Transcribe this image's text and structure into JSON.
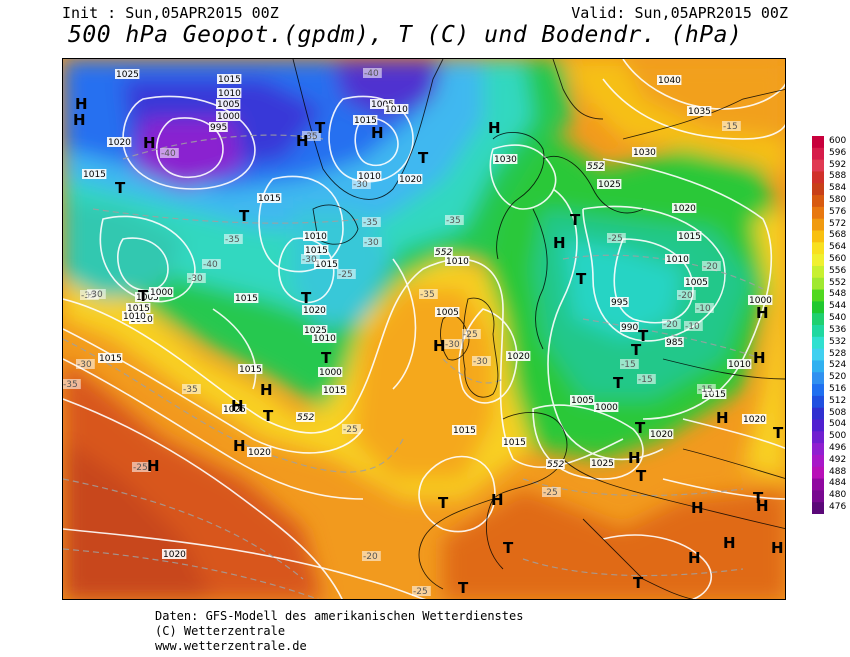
{
  "header": {
    "init": "Init : Sun,05APR2015 00Z",
    "valid": "Valid: Sun,05APR2015 00Z",
    "title": "500 hPa Geopot.(gpdm), T (C) und Bodendr. (hPa)"
  },
  "legend": {
    "levels": [
      "600",
      "596",
      "592",
      "588",
      "584",
      "580",
      "576",
      "572",
      "568",
      "564",
      "560",
      "556",
      "552",
      "548",
      "544",
      "540",
      "536",
      "532",
      "528",
      "524",
      "520",
      "516",
      "512",
      "508",
      "504",
      "500",
      "496",
      "492",
      "488",
      "484",
      "480",
      "476"
    ],
    "colors": [
      "#c8003c",
      "#d61c4a",
      "#e03a52",
      "#d0302a",
      "#c84018",
      "#d85a10",
      "#e87810",
      "#f09a10",
      "#f8c010",
      "#f8e020",
      "#f0f030",
      "#c8f030",
      "#a0e830",
      "#50d820",
      "#20c830",
      "#20d070",
      "#20d8a0",
      "#30e0d0",
      "#40d0f0",
      "#30b0f0",
      "#3090f0",
      "#2070f0",
      "#2050e0",
      "#3030d0",
      "#5020d0",
      "#7020d0",
      "#9020d0",
      "#a818c8",
      "#b810b8",
      "#9008a0",
      "#780890",
      "#5a0878"
    ]
  },
  "map_labels": {
    "high_pressure": [
      "H",
      "H",
      "H",
      "H",
      "H",
      "H",
      "H",
      "H",
      "H",
      "H",
      "H",
      "H",
      "H",
      "H",
      "H",
      "H",
      "H",
      "H",
      "H",
      "H",
      "H",
      "H"
    ],
    "low_pressure": [
      "T",
      "T",
      "T",
      "T",
      "T",
      "T",
      "T",
      "T",
      "T",
      "T",
      "T",
      "T",
      "T",
      "T",
      "T",
      "T",
      "T",
      "T",
      "T",
      "T",
      "T"
    ],
    "isobars": [
      "1025",
      "1015",
      "1010",
      "1005",
      "1000",
      "995",
      "1020",
      "1015",
      "1040",
      "1035",
      "1030",
      "1030",
      "1025",
      "1020",
      "1015",
      "1010",
      "1005",
      "1000",
      "995",
      "990",
      "985",
      "1010",
      "1015",
      "1020",
      "1005",
      "1000",
      "1025",
      "1020",
      "1015",
      "1020",
      "1015",
      "1010",
      "1005",
      "1000",
      "1015",
      "1020",
      "1025",
      "1010",
      "1015",
      "1010",
      "1015",
      "1015",
      "1020",
      "1010",
      "1015",
      "1005",
      "1010",
      "1015",
      "1015",
      "1025",
      "1020",
      "1020",
      "1015",
      "1010",
      "1005",
      "1000",
      "1010",
      "1015"
    ],
    "temperatures": [
      "-40",
      "-40",
      "-35",
      "-35",
      "-30",
      "-30",
      "-35",
      "-30",
      "-40",
      "-30",
      "-25",
      "-35",
      "-35",
      "-30",
      "-30",
      "-25",
      "-25",
      "-20",
      "-20",
      "-15",
      "-15",
      "-15",
      "-10",
      "-10",
      "-15",
      "-20",
      "-25",
      "-20",
      "-25",
      "-25",
      "-35",
      "-35",
      "-30",
      "-35",
      "-30",
      "-25"
    ],
    "contour_552": [
      "552",
      "552",
      "552",
      "552"
    ]
  },
  "footer": {
    "line1": "Daten: GFS-Modell des amerikanischen Wetterdienstes",
    "line2": "(C) Wetterzentrale",
    "line3": "www.wetterzentrale.de"
  }
}
